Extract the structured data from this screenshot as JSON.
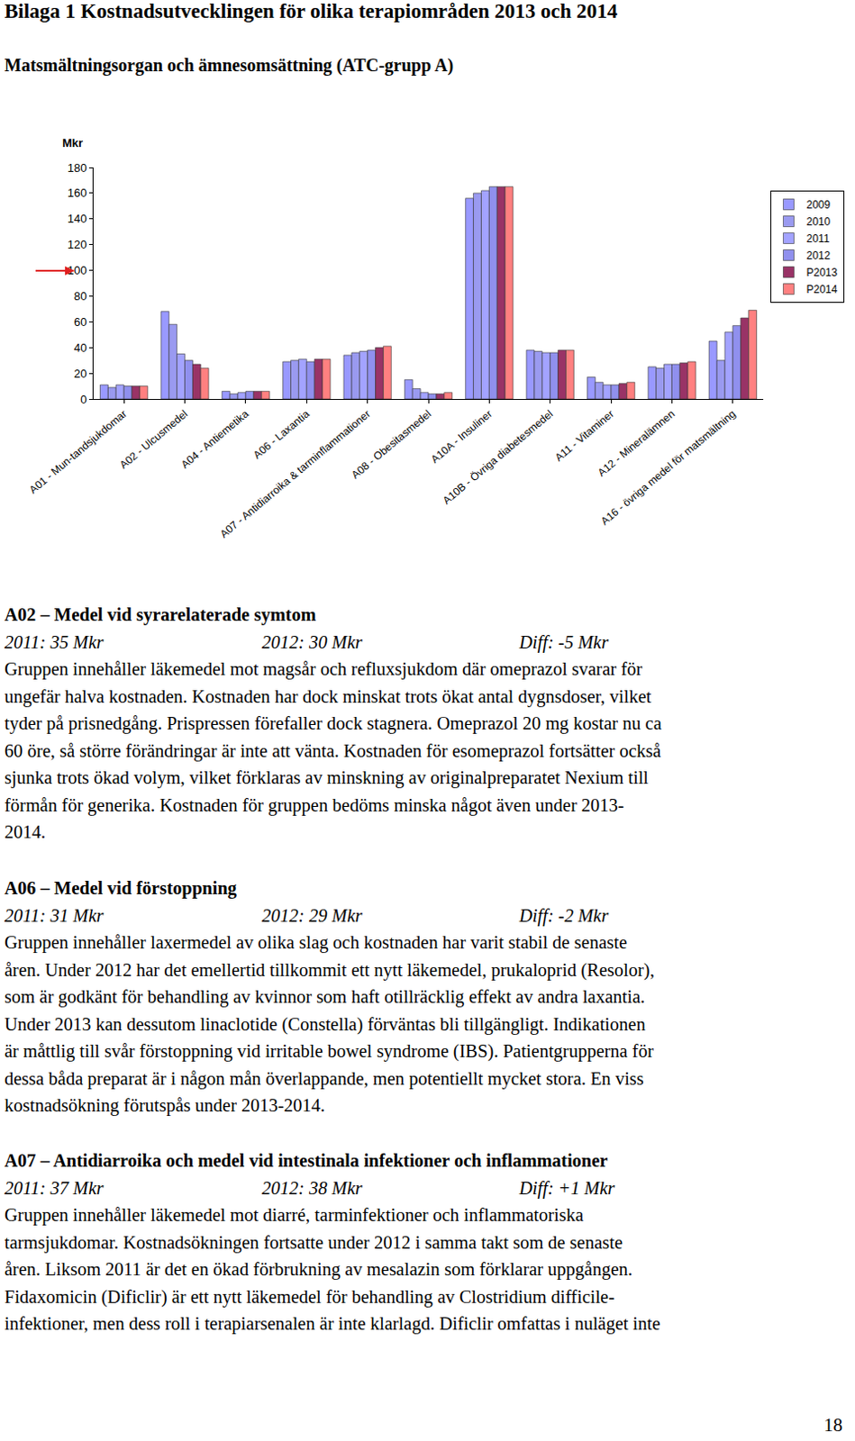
{
  "header": {
    "title": "Bilaga 1 Kostnadsutvecklingen för olika terapiområden 2013 och 2014",
    "subtitle": "Matsmältningsorgan och ämnesomsättning (ATC-grupp A)"
  },
  "chart_data": {
    "type": "bar",
    "y_label": "Mkr",
    "categories": [
      "A01 - Mun-tandsjukdomar",
      "A02 - Ulcusmedel",
      "A04 - Antiemetika",
      "A06 - Laxantia",
      "A07 - Antidiarroika & tarminflammationer",
      "A08 - Obesitasmedel",
      "A10A - Insuliner",
      "A10B - Övriga diabetesmedel",
      "A11 - Vitaminer",
      "A12 - Mineralämnen",
      "A16 - övriga medel för matsmältning"
    ],
    "series": [
      {
        "name": "2009",
        "color": "#9999ff",
        "values": [
          11,
          68,
          6,
          29,
          34,
          15,
          156,
          38,
          17,
          25,
          45
        ]
      },
      {
        "name": "2010",
        "color": "#9a9af0",
        "values": [
          9,
          58,
          4,
          30,
          36,
          8,
          160,
          37,
          13,
          24,
          30
        ]
      },
      {
        "name": "2011",
        "color": "#a3a3ff",
        "values": [
          11,
          35,
          5,
          31,
          37,
          5,
          162,
          36,
          11,
          27,
          52
        ]
      },
      {
        "name": "2012",
        "color": "#9090ee",
        "values": [
          10,
          30,
          6,
          29,
          38,
          4,
          165,
          36,
          11,
          27,
          57
        ]
      },
      {
        "name": "P2013",
        "color": "#993366",
        "values": [
          10,
          27,
          6,
          31,
          40,
          4,
          165,
          38,
          12,
          28,
          63
        ]
      },
      {
        "name": "P2014",
        "color": "#ff8080",
        "values": [
          10,
          24,
          6,
          31,
          41,
          5,
          165,
          38,
          13,
          29,
          69
        ]
      }
    ],
    "ylim": [
      0,
      180
    ],
    "yticks": [
      0,
      20,
      40,
      60,
      80,
      100,
      120,
      140,
      160,
      180
    ],
    "grid": false,
    "legend": "right"
  },
  "sections": [
    {
      "heading": "A02 – Medel vid syrarelaterade symtom",
      "stats": [
        "2011: 35 Mkr",
        "2012: 30 Mkr",
        "Diff: -5 Mkr"
      ],
      "lines": [
        "Gruppen innehåller läkemedel mot magsår och refluxsjukdom där omeprazol svarar för",
        "ungefär halva kostnaden. Kostnaden har dock minskat trots ökat antal dygnsdoser, vilket",
        "tyder på prisnedgång. Prispressen förefaller dock stagnera. Omeprazol 20 mg kostar nu ca",
        "60 öre, så större förändringar är inte att vänta. Kostnaden för esomeprazol fortsätter också",
        "sjunka trots ökad volym, vilket förklaras av minskning av originalpreparatet Nexium till",
        "förmån för generika. Kostnaden för gruppen bedöms minska något även under 2013-",
        "2014."
      ]
    },
    {
      "heading": "A06 – Medel vid förstoppning",
      "stats": [
        "2011: 31 Mkr",
        "2012: 29 Mkr",
        "Diff: -2 Mkr"
      ],
      "lines": [
        "Gruppen innehåller laxermedel av olika slag och kostnaden har varit stabil de senaste",
        "åren. Under 2012 har det emellertid tillkommit ett nytt läkemedel, prukaloprid (Resolor),",
        "som är godkänt för behandling av kvinnor som haft otillräcklig effekt av andra laxantia.",
        "Under 2013 kan dessutom linaclotide (Constella) förväntas bli tillgängligt. Indikationen",
        "är måttlig till svår förstoppning vid irritable bowel syndrome (IBS). Patientgrupperna för",
        "dessa båda preparat är i någon mån överlappande, men potentiellt mycket stora. En viss",
        "kostnadsökning förutspås under 2013-2014."
      ]
    },
    {
      "heading": "A07 – Antidiarroika och medel vid intestinala infektioner och inflammationer",
      "stats": [
        "2011: 37 Mkr",
        "2012: 38 Mkr",
        "Diff: +1 Mkr"
      ],
      "lines": [
        "Gruppen innehåller läkemedel mot diarré, tarminfektioner och inflammatoriska",
        "tarmsjukdomar. Kostnadsökningen fortsatte under 2012 i samma takt som de senaste",
        "åren. Liksom 2011 är det en ökad förbrukning av mesalazin som förklarar uppgången.",
        "Fidaxomicin (Dificlir) är ett nytt läkemedel för behandling av Clostridium difficile-",
        "infektioner, men dess roll i terapiarsenalen är inte klarlagd. Dificlir omfattas i nuläget inte"
      ]
    }
  ],
  "page_number": "18"
}
